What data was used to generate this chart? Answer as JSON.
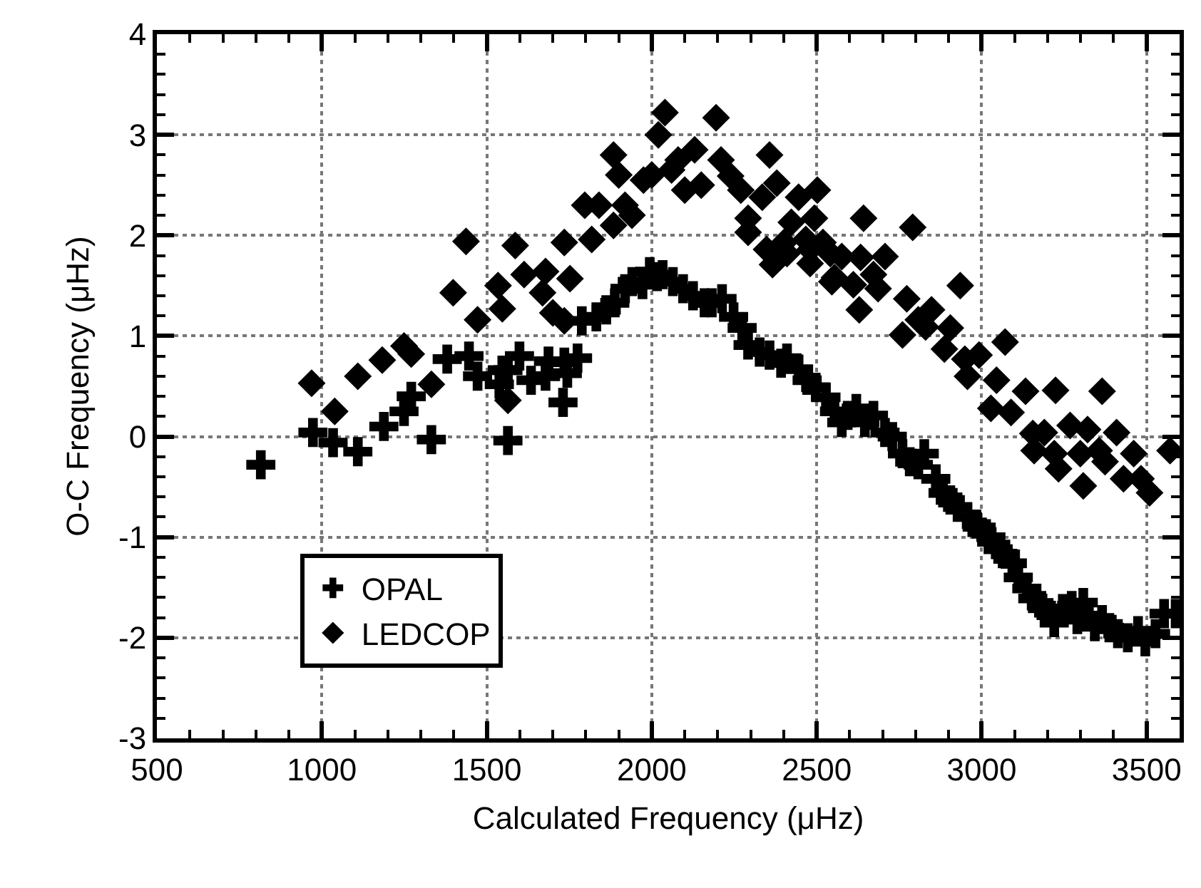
{
  "chart_data": {
    "type": "scatter",
    "xlabel": "Calculated Frequency (μHz)",
    "ylabel": "O-C Frequency (μHz)",
    "xlim": [
      500,
      3600
    ],
    "xticks": [
      500,
      1000,
      1500,
      2000,
      2500,
      3000,
      3500
    ],
    "ylim": [
      -3,
      4
    ],
    "yticks": [
      -3,
      -2,
      -1,
      0,
      1,
      2,
      3,
      4
    ],
    "grid": true,
    "legend": "bottom left",
    "series": [
      {
        "name": "OPAL",
        "color": "#000000",
        "marker": "cross",
        "x": [
          815,
          973,
          1034,
          1109,
          1188,
          1249,
          1271,
          1332,
          1380,
          1446,
          1472,
          1538,
          1547,
          1564,
          1564,
          1599,
          1634,
          1678,
          1687,
          1731,
          1735,
          1744,
          1775,
          1788,
          1832,
          1862,
          1888,
          1919,
          1941,
          1972,
          1994,
          2016,
          2033,
          2064,
          2095,
          2125,
          2160,
          2182,
          2213,
          2248,
          2274,
          2292,
          2327,
          2357,
          2392,
          2410,
          2445,
          2471,
          2497,
          2528,
          2554,
          2576,
          2594,
          2620,
          2646,
          2672,
          2707,
          2729,
          2760,
          2782,
          2808,
          2826,
          2861,
          2883,
          2905,
          2927,
          2957,
          2984,
          3001,
          3028,
          3050,
          3072,
          3093,
          3111,
          3137,
          3155,
          3181,
          3203,
          3220,
          3246,
          3273,
          3290,
          3308,
          3325,
          3343,
          3365,
          3387,
          3413,
          3443,
          3474,
          3496,
          3527,
          3553,
          3588
        ],
        "values": [
          -0.28,
          0.04,
          -0.06,
          -0.15,
          0.1,
          0.25,
          0.4,
          -0.03,
          0.77,
          0.8,
          0.6,
          0.52,
          0.66,
          -0.04,
          0.66,
          0.8,
          0.56,
          0.6,
          0.75,
          0.34,
          0.74,
          0.63,
          0.78,
          1.15,
          1.19,
          1.26,
          1.33,
          1.47,
          1.54,
          1.51,
          1.64,
          1.59,
          1.61,
          1.54,
          1.47,
          1.4,
          1.33,
          1.33,
          1.37,
          1.19,
          1.08,
          0.91,
          0.84,
          0.81,
          0.73,
          0.78,
          0.67,
          0.56,
          0.49,
          0.39,
          0.25,
          0.14,
          0.21,
          0.28,
          0.14,
          0.21,
          0.04,
          0.0,
          -0.17,
          -0.25,
          -0.28,
          -0.17,
          -0.42,
          -0.56,
          -0.63,
          -0.7,
          -0.8,
          -0.87,
          -0.95,
          -1.0,
          -1.12,
          -1.17,
          -1.26,
          -1.4,
          -1.51,
          -1.61,
          -1.68,
          -1.75,
          -1.85,
          -1.71,
          -1.68,
          -1.82,
          -1.65,
          -1.78,
          -1.89,
          -1.82,
          -1.9,
          -1.96,
          -2.0,
          -1.93,
          -2.04,
          -1.96,
          -1.76,
          -1.76
        ]
      },
      {
        "name": "LEDCOP",
        "color": "#000000",
        "marker": "diamond",
        "x": [
          969,
          1039,
          1109,
          1183,
          1249,
          1271,
          1332,
          1398,
          1437,
          1472,
          1534,
          1547,
          1564,
          1586,
          1613,
          1669,
          1678,
          1700,
          1735,
          1735,
          1752,
          1797,
          1818,
          1840,
          1884,
          1884,
          1900,
          1919,
          1940,
          1975,
          2000,
          2020,
          2040,
          2060,
          2080,
          2100,
          2130,
          2150,
          2195,
          2210,
          2239,
          2270,
          2292,
          2292,
          2335,
          2348,
          2357,
          2366,
          2379,
          2401,
          2410,
          2423,
          2445,
          2467,
          2480,
          2480,
          2493,
          2502,
          2519,
          2541,
          2546,
          2554,
          2576,
          2611,
          2629,
          2633,
          2642,
          2672,
          2686,
          2707,
          2760,
          2773,
          2791,
          2808,
          2830,
          2848,
          2887,
          2905,
          2935,
          2949,
          2957,
          2992,
          3028,
          3045,
          3071,
          3089,
          3133,
          3155,
          3159,
          3190,
          3220,
          3224,
          3233,
          3268,
          3299,
          3308,
          3321,
          3356,
          3365,
          3374,
          3409,
          3430,
          3461,
          3483,
          3509,
          3571
        ],
        "values": [
          0.53,
          0.25,
          0.6,
          0.76,
          0.9,
          0.82,
          0.52,
          1.43,
          1.94,
          1.16,
          1.5,
          1.27,
          0.36,
          1.9,
          1.61,
          1.43,
          1.64,
          1.23,
          1.15,
          1.93,
          1.57,
          2.3,
          1.96,
          2.3,
          2.1,
          2.8,
          2.6,
          2.3,
          2.2,
          2.55,
          2.6,
          3.0,
          3.22,
          2.65,
          2.75,
          2.45,
          2.85,
          2.5,
          3.17,
          2.75,
          2.59,
          2.45,
          2.03,
          2.17,
          2.38,
          1.86,
          2.8,
          1.71,
          2.52,
          1.93,
          1.82,
          2.13,
          2.38,
          1.96,
          1.86,
          1.72,
          2.17,
          2.45,
          1.93,
          1.82,
          1.54,
          1.58,
          1.79,
          1.51,
          1.26,
          1.78,
          2.17,
          1.61,
          1.47,
          1.79,
          1.01,
          1.37,
          2.08,
          1.16,
          1.09,
          1.26,
          0.87,
          1.08,
          1.5,
          0.77,
          0.6,
          0.81,
          0.28,
          0.56,
          0.94,
          0.24,
          0.45,
          0.03,
          -0.14,
          0.04,
          -0.17,
          0.46,
          -0.32,
          0.11,
          -0.17,
          -0.49,
          0.07,
          -0.14,
          0.45,
          -0.25,
          0.04,
          -0.42,
          -0.17,
          -0.42,
          -0.56,
          -0.14
        ]
      }
    ]
  }
}
